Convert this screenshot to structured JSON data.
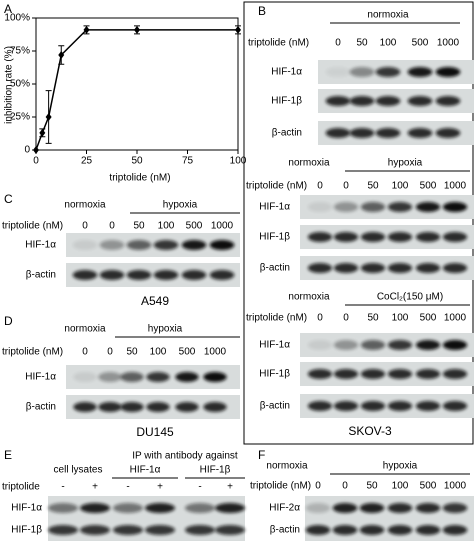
{
  "chart_data": {
    "type": "line",
    "panel_label": "A",
    "x_label": "triptolide (nM)",
    "y_label": "inhibition rate (%)",
    "x": [
      0,
      3.125,
      6.25,
      12.5,
      25,
      50,
      100
    ],
    "values": [
      0,
      13,
      25,
      72,
      91,
      91,
      91
    ],
    "errors": [
      0,
      3,
      20,
      7,
      3,
      3,
      3
    ],
    "color": "#000000",
    "xlim": [
      0,
      100
    ],
    "ylim": [
      0,
      100
    ],
    "xticks": [
      0,
      25,
      50,
      75,
      100
    ],
    "yticks": [
      0,
      {
        "value": 25,
        "label": "25%"
      },
      {
        "value": 50,
        "label": "50%"
      },
      {
        "value": 75,
        "label": "75%"
      },
      {
        "value": 100,
        "label": "100%"
      }
    ]
  },
  "panel_b": {
    "label": "B",
    "cell_line": "SKOV-3",
    "blocks": [
      {
        "conditions": [
          "normoxia"
        ],
        "dose_label": "triptolide (nM)",
        "doses": [
          "0",
          "50",
          "100",
          "500",
          "1000"
        ],
        "rows": [
          "HIF-1α",
          "HIF-1β",
          "β-actin"
        ]
      },
      {
        "conditions": [
          "normoxia",
          "hypoxia"
        ],
        "dose_label": "triptolide (nM)",
        "doses": [
          "0",
          "0",
          "50",
          "100",
          "500",
          "1000"
        ],
        "rows": [
          "HIF-1α",
          "HIF-1β",
          "β-actin"
        ]
      },
      {
        "conditions": [
          "normoxia",
          "CoCl₂(150 μM)"
        ],
        "dose_label": "triptolide (nM)",
        "doses": [
          "0",
          "0",
          "50",
          "100",
          "500",
          "1000"
        ],
        "rows": [
          "HIF-1α",
          "HIF-1β",
          "β-actin"
        ]
      }
    ]
  },
  "panel_c": {
    "label": "C",
    "cell_line": "A549",
    "conditions": [
      "normoxia",
      "hypoxia"
    ],
    "dose_label": "triptolide (nM)",
    "doses": [
      "0",
      "0",
      "50",
      "100",
      "500",
      "1000"
    ],
    "rows": [
      "HIF-1α",
      "β-actin"
    ]
  },
  "panel_d": {
    "label": "D",
    "cell_line": "DU145",
    "conditions": [
      "normoxia",
      "hypoxia"
    ],
    "dose_label": "triptolide (nM)",
    "doses": [
      "0",
      "0",
      "50",
      "100",
      "500",
      "1000"
    ],
    "rows": [
      "HIF-1α",
      "β-actin"
    ]
  },
  "panel_e": {
    "label": "E",
    "header": "IP with antibody against",
    "conditions": [
      "cell lysates",
      "HIF-1α",
      "HIF-1β"
    ],
    "dose_label": "triptolide",
    "doses": [
      "-",
      "+",
      "-",
      "+",
      "-",
      "+"
    ],
    "rows": [
      "HIF-1α",
      "HIF-1β"
    ]
  },
  "panel_f": {
    "label": "F",
    "conditions": [
      "normoxia",
      "hypoxia"
    ],
    "dose_label": "triptolide (nM)",
    "doses": [
      "0",
      "0",
      "50",
      "100",
      "500",
      "1000"
    ],
    "rows": [
      "HIF-2α",
      "β-actin"
    ]
  }
}
